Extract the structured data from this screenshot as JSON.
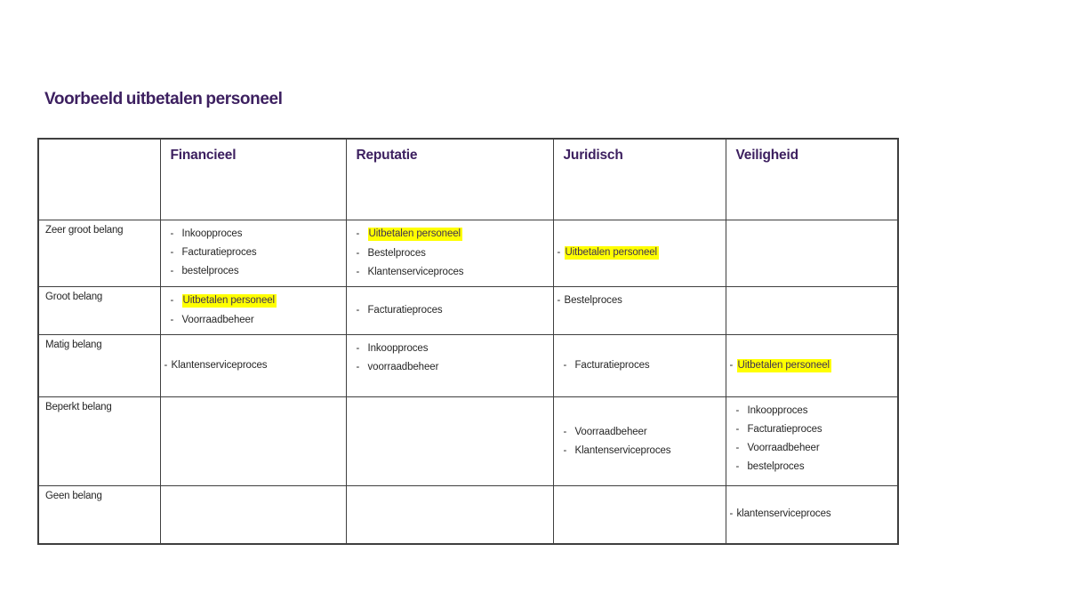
{
  "title": "Voorbeeld uitbetalen personeel",
  "colors": {
    "accent_purple": "#3d2060",
    "body_text": "#262626",
    "highlight_yellow": "#ffff00",
    "highlight_text": "#403152",
    "table_border": "#3f3f3f"
  },
  "table": {
    "column_headers": [
      "",
      "Financieel",
      "Reputatie",
      "Juridisch",
      "Veiligheid"
    ],
    "rows": [
      {
        "label": "Zeer groot belang",
        "cells": [
          {
            "valign": "top",
            "style": "indent",
            "items": [
              {
                "text": "Inkoopproces",
                "highlight": false
              },
              {
                "text": "Facturatieproces",
                "highlight": false
              },
              {
                "text": "bestelproces",
                "highlight": false
              }
            ]
          },
          {
            "valign": "top",
            "style": "indent",
            "items": [
              {
                "text": "Uitbetalen personeel",
                "highlight": true
              },
              {
                "text": "Bestelproces",
                "highlight": false
              },
              {
                "text": "Klantenserviceproces",
                "highlight": false
              }
            ]
          },
          {
            "valign": "middle",
            "style": "tight",
            "items": [
              {
                "text": "Uitbetalen personeel",
                "highlight": true
              }
            ]
          },
          {
            "valign": "top",
            "style": "indent",
            "items": []
          }
        ]
      },
      {
        "label": "Groot belang",
        "cells": [
          {
            "valign": "top",
            "style": "indent",
            "items": [
              {
                "text": "Uitbetalen personeel",
                "highlight": true
              },
              {
                "text": "Voorraadbeheer",
                "highlight": false
              }
            ]
          },
          {
            "valign": "middle",
            "style": "indent",
            "items": [
              {
                "text": "Facturatieproces",
                "highlight": false
              }
            ]
          },
          {
            "valign": "top",
            "style": "tight",
            "items": [
              {
                "text": "Bestelproces",
                "highlight": false
              }
            ]
          },
          {
            "valign": "top",
            "style": "indent",
            "items": []
          }
        ]
      },
      {
        "label": "Matig belang",
        "cells": [
          {
            "valign": "middle",
            "style": "tight",
            "items": [
              {
                "text": "Klantenserviceproces",
                "highlight": false
              }
            ]
          },
          {
            "valign": "top",
            "style": "indent",
            "items": [
              {
                "text": "Inkoopproces",
                "highlight": false
              },
              {
                "text": "voorraadbeheer",
                "highlight": false
              }
            ]
          },
          {
            "valign": "middle",
            "style": "indent",
            "items": [
              {
                "text": "Facturatieproces",
                "highlight": false
              }
            ]
          },
          {
            "valign": "middle",
            "style": "tight",
            "items": [
              {
                "text": "Uitbetalen personeel",
                "highlight": true
              }
            ]
          }
        ]
      },
      {
        "label": "Beperkt belang",
        "cells": [
          {
            "valign": "top",
            "style": "indent",
            "items": []
          },
          {
            "valign": "top",
            "style": "indent",
            "items": []
          },
          {
            "valign": "middle",
            "style": "indent",
            "items": [
              {
                "text": "Voorraadbeheer",
                "highlight": false
              },
              {
                "text": "Klantenserviceproces",
                "highlight": false
              }
            ]
          },
          {
            "valign": "top",
            "style": "indent",
            "items": [
              {
                "text": "Inkoopproces",
                "highlight": false
              },
              {
                "text": "Facturatieproces",
                "highlight": false
              },
              {
                "text": "Voorraadbeheer",
                "highlight": false
              },
              {
                "text": "bestelproces",
                "highlight": false
              }
            ]
          }
        ]
      },
      {
        "label": "Geen belang",
        "cells": [
          {
            "valign": "top",
            "style": "indent",
            "items": []
          },
          {
            "valign": "top",
            "style": "indent",
            "items": []
          },
          {
            "valign": "top",
            "style": "indent",
            "items": []
          },
          {
            "valign": "middle",
            "style": "tight",
            "items": [
              {
                "text": "klantenserviceproces",
                "highlight": false
              }
            ]
          }
        ]
      }
    ]
  }
}
